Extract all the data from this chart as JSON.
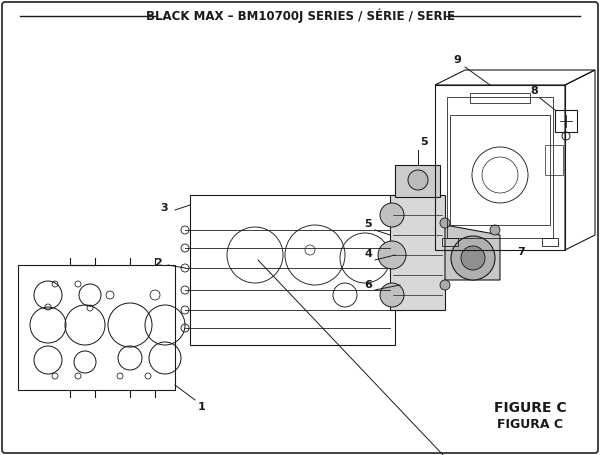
{
  "title": "BLACK MAX – BM10700J SERIES / SÉRIE / SERIE",
  "figure_label": "FIGURE C",
  "figure_label2": "FIGURA C",
  "bg_color": "#ffffff",
  "border_color": "#000000",
  "line_color": "#1a1a1a",
  "title_fontsize": 8.5,
  "label_fontsize": 8,
  "figure_label_fontsize": 10
}
